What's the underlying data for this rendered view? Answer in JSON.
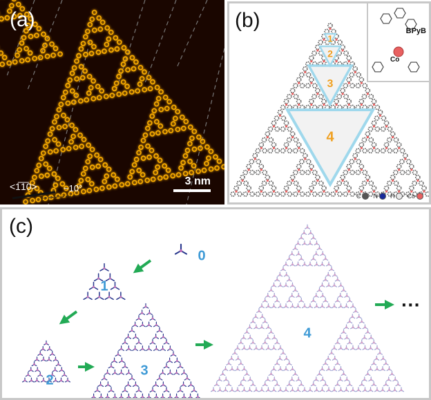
{
  "panel_a": {
    "label": "(a)",
    "direction": "<1̅1̅0>",
    "angle": "~10°",
    "scale": "3 nm"
  },
  "panel_b": {
    "label": "(b)",
    "inset_bpyb": "BPyB",
    "inset_co": "Co",
    "triangle_labels": [
      "1",
      "2",
      "3",
      "4"
    ],
    "legend": [
      {
        "symbol": "C",
        "color": "#555555"
      },
      {
        "symbol": "N",
        "color": "#1a2a9a"
      },
      {
        "symbol": "H",
        "color": "#e8e8e8"
      },
      {
        "symbol": "Co",
        "color": "#e86060"
      }
    ]
  },
  "panel_c": {
    "label": "(c)",
    "stage_labels": [
      "0",
      "1",
      "2",
      "3",
      "4"
    ],
    "ellipsis": "···"
  },
  "colors": {
    "afm_glow": "#ffb000",
    "afm_bg": "#1a0600",
    "triangle_outline": "#9fd8ec",
    "accent_orange": "#f0a020",
    "arrow_green": "#22aa55",
    "stage_blue": "#3e9ad6",
    "molecule": "#2b3a8e",
    "cobalt": "#c070b8"
  }
}
